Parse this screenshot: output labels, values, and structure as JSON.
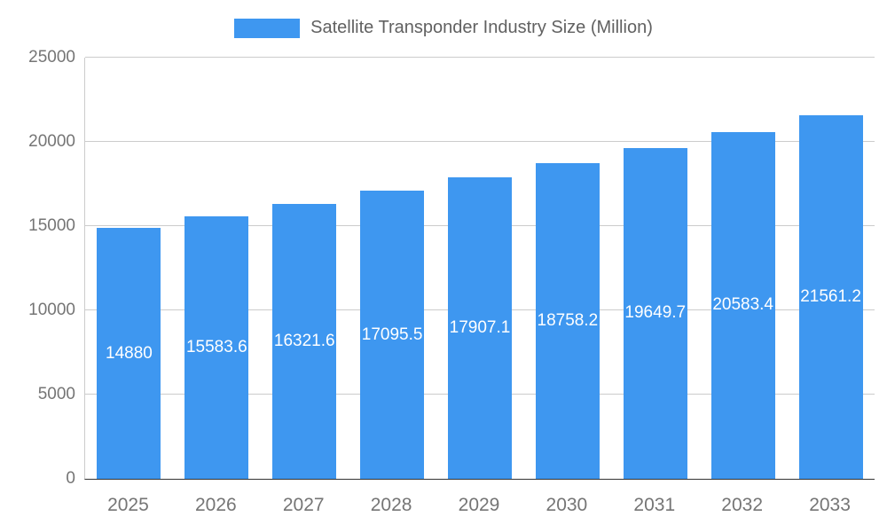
{
  "legend": {
    "label": "Satellite Transponder Industry Size (Million)"
  },
  "colors": {
    "bar": "#3e97f0",
    "grid": "#cccccc",
    "baseline": "#333333",
    "axis_text": "#757575",
    "legend_text": "#616161",
    "bar_label_text": "#ffffff"
  },
  "chart_data": {
    "type": "bar",
    "title": "Satellite Transponder Industry Size (Million)",
    "categories": [
      "2025",
      "2026",
      "2027",
      "2028",
      "2029",
      "2030",
      "2031",
      "2032",
      "2033"
    ],
    "values": [
      14880,
      15583.6,
      16321.6,
      17095.5,
      17907.1,
      18758.2,
      19649.7,
      20583.4,
      21561.2
    ],
    "bar_labels": [
      "14880",
      "15583.6",
      "16321.6",
      "17095.5",
      "17907.1",
      "18758.2",
      "19649.7",
      "20583.4",
      "21561.2"
    ],
    "xlabel": "",
    "ylabel": "",
    "ylim": [
      0,
      25000
    ],
    "yticks": [
      0,
      5000,
      10000,
      15000,
      20000,
      25000
    ],
    "grid": true,
    "legend_position": "top"
  }
}
